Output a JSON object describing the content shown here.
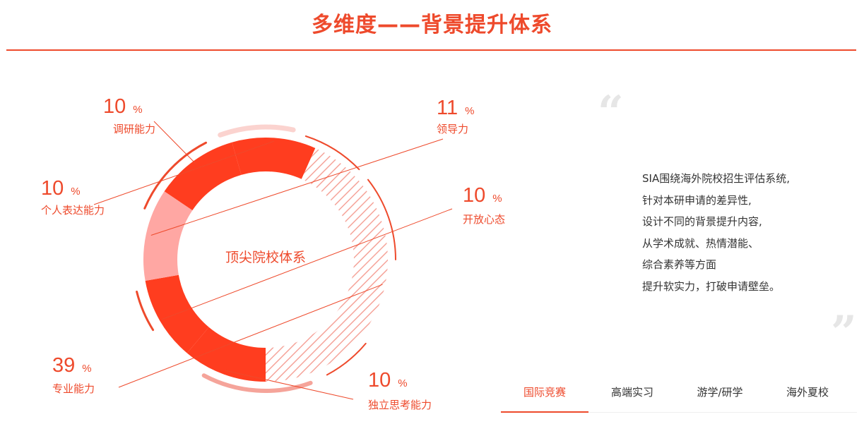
{
  "header": {
    "title": "多维度——背景提升体系"
  },
  "colors": {
    "accent": "#ee4a2c",
    "primary_segment": "#ff3d1f",
    "light_segment": "#ffa7a3",
    "hatch": "#f5a49a"
  },
  "chart_data": {
    "type": "donut",
    "center_label": "顶尖院校体系",
    "slices": [
      {
        "label": "调研能力",
        "value": 10,
        "unit": "%"
      },
      {
        "label": "个人表达能力",
        "value": 10,
        "unit": "%"
      },
      {
        "label": "专业能力",
        "value": 39,
        "unit": "%"
      },
      {
        "label": "独立思考能力",
        "value": 10,
        "unit": "%"
      },
      {
        "label": "开放心态",
        "value": 10,
        "unit": "%"
      },
      {
        "label": "领导力",
        "value": 11,
        "unit": "%"
      }
    ]
  },
  "description": {
    "lines": [
      "SIA围绕海外院校招生评估系统,",
      "针对本研申请的差异性,",
      "设计不同的背景提升内容,",
      "从学术成就、热情潜能、",
      "综合素养等方面",
      "提升软实力，打破申请壁垒。"
    ]
  },
  "quotes": {
    "open": "“",
    "close": "”"
  },
  "tabs": [
    {
      "label": "国际竞赛",
      "active": true
    },
    {
      "label": "高端实习",
      "active": false
    },
    {
      "label": "游学/研学",
      "active": false
    },
    {
      "label": "海外夏校",
      "active": false
    }
  ]
}
